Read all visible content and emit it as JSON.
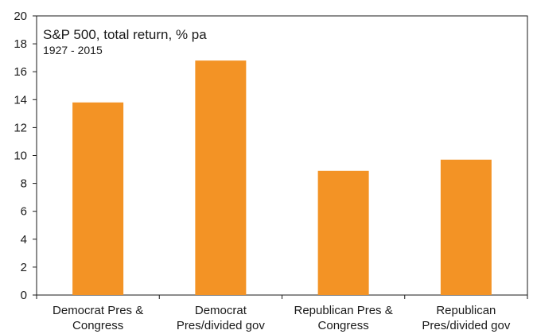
{
  "chart_data": {
    "type": "bar",
    "title": "S&P 500, total return, % pa",
    "subtitle": "1927 - 2015",
    "categories": [
      [
        "Democrat Pres &",
        "Congress"
      ],
      [
        "Democrat",
        "Pres/divided gov"
      ],
      [
        "Republican Pres &",
        "Congress"
      ],
      [
        "Republican",
        "Pres/divided gov"
      ]
    ],
    "values": [
      13.8,
      16.8,
      8.9,
      9.7
    ],
    "ylim": [
      0,
      20
    ],
    "yticks": [
      0,
      2,
      4,
      6,
      8,
      10,
      12,
      14,
      16,
      18,
      20
    ],
    "grid": false,
    "bar_color": "#F39325",
    "axis_color": "#1a1a1a"
  }
}
